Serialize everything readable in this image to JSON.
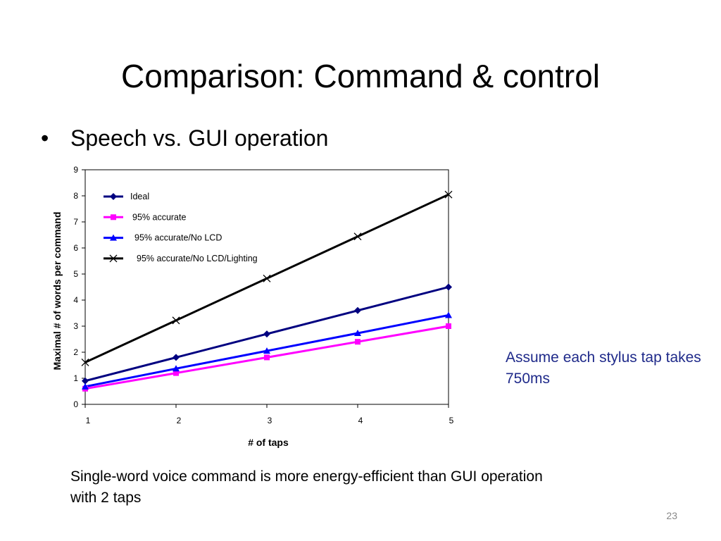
{
  "slide": {
    "title": "Comparison: Command & control",
    "bullet_symbol": "•",
    "bullet": "Speech vs. GUI operation",
    "side_note": "Assume each stylus tap takes 750ms",
    "bottom_note": "Single-word voice command is more energy-efficient than GUI operation with 2 taps",
    "page_number": "23"
  },
  "chart_data": {
    "type": "line",
    "title": "",
    "xlabel": "# of taps",
    "ylabel": "Maximal # of words per command",
    "x": [
      1,
      2,
      3,
      4,
      5
    ],
    "xlim": [
      1,
      5
    ],
    "ylim": [
      0,
      9
    ],
    "yticks": [
      0,
      1,
      2,
      3,
      4,
      5,
      6,
      7,
      8,
      9
    ],
    "grid": false,
    "legend_position": "top-left",
    "series": [
      {
        "name": "Ideal",
        "color": "#000080",
        "marker": "diamond",
        "values": [
          0.9,
          1.8,
          2.7,
          3.6,
          4.5
        ]
      },
      {
        "name": "95% accurate",
        "color": "#ff00ff",
        "marker": "square",
        "values": [
          0.6,
          1.2,
          1.8,
          2.4,
          3.0
        ]
      },
      {
        "name": "95% accurate/No LCD",
        "color": "#0000ff",
        "marker": "triangle",
        "values": [
          0.68,
          1.37,
          2.05,
          2.73,
          3.42
        ]
      },
      {
        "name": "95% accurate/No LCD/Lighting",
        "color": "#000000",
        "marker": "x",
        "values": [
          1.61,
          3.22,
          4.83,
          6.44,
          8.05
        ]
      }
    ]
  }
}
